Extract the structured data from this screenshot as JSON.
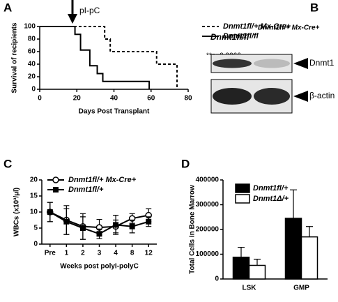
{
  "chart_data": [
    {
      "type": "line",
      "panel": "A",
      "xlabel": "Days Post Transplant",
      "ylabel": "Survival of recipients",
      "xlim": [
        0,
        80
      ],
      "xticks": [
        0,
        20,
        40,
        60,
        80
      ],
      "ylim": [
        0,
        100
      ],
      "yticks": [
        0,
        20,
        40,
        60,
        80,
        100
      ],
      "annotations": [
        "pI-pC",
        "**p=0.0066"
      ],
      "series": [
        {
          "name": "Dnmt1fl/+ Mx-Cre+",
          "color": "#000000",
          "linestyle": "dashed",
          "x": [
            0,
            35,
            35,
            38,
            38,
            63,
            63,
            74,
            74
          ],
          "values": [
            100,
            100,
            80,
            80,
            60,
            60,
            40,
            40,
            0
          ]
        },
        {
          "name": "Dnmt1fl/fl",
          "color": "#000000",
          "linestyle": "solid",
          "x": [
            0,
            19,
            19,
            22,
            22,
            27,
            27,
            31,
            31,
            34,
            34,
            59,
            59
          ],
          "values": [
            100,
            100,
            87.5,
            87.5,
            62.5,
            62.5,
            37.5,
            37.5,
            25,
            25,
            12.5,
            12.5,
            0
          ]
        }
      ]
    },
    {
      "type": "blot",
      "panel": "B",
      "lanes": [
        "Dnmt1fl/fl",
        "Dnmt1fl/+ Mx-Cre+"
      ],
      "bands": [
        "Dnmt1",
        "β-actin"
      ]
    },
    {
      "type": "line",
      "panel": "C",
      "xlabel": "Weeks post polyI-polyC",
      "ylabel": "WBCs (x10³/µl)",
      "categories": [
        "Pre",
        "1",
        "2",
        "3",
        "4",
        "8",
        "12"
      ],
      "ylim": [
        0,
        20
      ],
      "yticks": [
        0,
        5,
        10,
        15,
        20
      ],
      "series": [
        {
          "name": "Dnmt1fl/+ Mx-Cre+",
          "color": "#000000",
          "marker": "circle",
          "fill": "#ffffff",
          "values": [
            10,
            7.5,
            5.5,
            5.2,
            5.5,
            8,
            9
          ],
          "errors": [
            3,
            4.5,
            4,
            2.5,
            2,
            1.5,
            2
          ]
        },
        {
          "name": "Dnmt1fl/+",
          "color": "#000000",
          "marker": "square",
          "fill": "#000000",
          "values": [
            10,
            7,
            5,
            3.2,
            6,
            5.5,
            7
          ],
          "errors": [
            3,
            4,
            3.5,
            1.5,
            3,
            2,
            1.5
          ]
        }
      ]
    },
    {
      "type": "bar",
      "panel": "D",
      "ylabel": "Total Cells in Bone Marrow",
      "categories": [
        "LSK",
        "GMP"
      ],
      "ylim": [
        0,
        400000
      ],
      "yticks": [
        0,
        100000,
        200000,
        300000,
        400000
      ],
      "series": [
        {
          "name": "Dnmt1fl/+",
          "color": "#000000",
          "values": [
            88000,
            245000
          ],
          "errors": [
            40000,
            115000
          ]
        },
        {
          "name": "Dnmt1Δ/+",
          "color": "#ffffff",
          "values": [
            55000,
            170000
          ],
          "errors": [
            25000,
            42000
          ]
        }
      ]
    }
  ]
}
